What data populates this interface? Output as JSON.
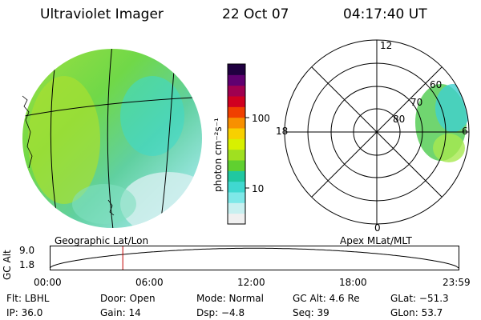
{
  "header": {
    "instrument": "Ultraviolet Imager",
    "date": "22 Oct 07",
    "time": "04:17:40 UT"
  },
  "colorbar": {
    "unit_label": "photon cm⁻²s⁻¹",
    "ticks": [
      "100",
      "10"
    ],
    "colors": [
      "#f0f0f0",
      "#c8f0f0",
      "#7ee8e8",
      "#40d8d0",
      "#20c8a0",
      "#60d030",
      "#a0e020",
      "#d8f000",
      "#f8d000",
      "#f89000",
      "#f04000",
      "#d00020",
      "#a00050",
      "#600070",
      "#200040"
    ]
  },
  "left_panel": {
    "caption": "Geographic Lat/Lon"
  },
  "right_panel": {
    "caption": "Apex MLat/MLT",
    "mlt_labels": [
      "12",
      "18",
      "6",
      "0"
    ],
    "mlat_labels": [
      "60",
      "70",
      "80"
    ]
  },
  "timeline": {
    "axis_label": "GC Alt",
    "y_ticks": [
      "9.0",
      "1.8"
    ],
    "x_ticks": [
      "00:00",
      "06:00",
      "12:00",
      "18:00",
      "23:59"
    ],
    "current_hour": 4.29
  },
  "status": {
    "flt": "Flt: LBHL",
    "door": "Door: Open",
    "mode": "Mode: Normal",
    "gc_alt": "GC Alt: 4.6 Re",
    "glat": "GLat: −51.3",
    "ip": "IP: 36.0",
    "gain": "Gain: 14",
    "dsp": "Dsp:   −4.8",
    "seq": "Seq: 39",
    "glon": "GLon:  53.7"
  }
}
